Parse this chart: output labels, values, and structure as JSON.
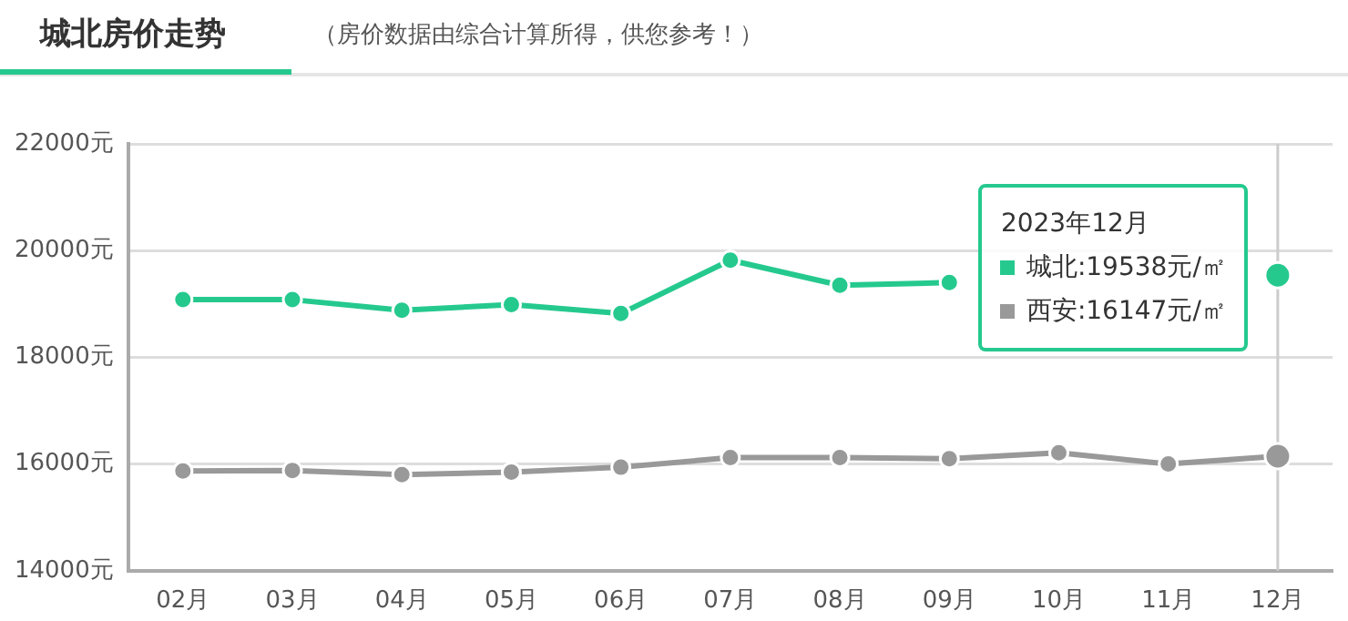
{
  "chart_data": {
    "type": "line",
    "title": "城北房价走势",
    "subtitle": "（房价数据由综合计算所得，供您参考！）",
    "categories": [
      "02月",
      "03月",
      "04月",
      "05月",
      "06月",
      "07月",
      "08月",
      "09月",
      "10月",
      "11月",
      "12月"
    ],
    "series": [
      {
        "color": "#25c98e",
        "values": [
          19080,
          19080,
          18880,
          18990,
          18820,
          19820,
          19350,
          19400,
          null,
          null,
          19538
        ]
      },
      {
        "color": "#999999",
        "values": [
          15870,
          15880,
          15800,
          15850,
          15940,
          16120,
          16120,
          16100,
          16210,
          16000,
          16147
        ]
      }
    ],
    "ylim": [
      14000,
      22000
    ],
    "yticks": [
      {
        "value": 14000,
        "label": "14000元"
      },
      {
        "value": 16000,
        "label": "16000元"
      },
      {
        "value": 18000,
        "label": "18000元"
      },
      {
        "value": 20000,
        "label": "20000元"
      },
      {
        "value": 22000,
        "label": "22000元"
      }
    ],
    "grid": "y",
    "legend": false,
    "marker": "circle",
    "line_style": "solid",
    "ref_lines": [
      {
        "axis": "x",
        "value": "12月",
        "color": "#cccccc"
      }
    ],
    "annotations": [
      "2023年12月",
      "城北:19538元/㎡",
      "西安:16147元/㎡"
    ]
  }
}
